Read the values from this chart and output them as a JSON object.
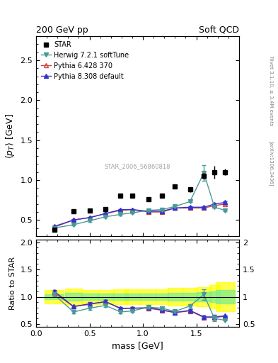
{
  "title_left": "200 GeV pp",
  "title_right": "Soft QCD",
  "right_label_top": "Rivet 3.1.10, ≥ 3.4M events",
  "right_label_bottom": "[arXiv:1306.3436]",
  "watermark": "STAR_2006_S6860818",
  "xlabel": "mass [GeV]",
  "ylabel_main": "⟨p_T⟩ [GeV]",
  "ylabel_ratio": "Ratio to STAR",
  "xlim": [
    0.0,
    1.9
  ],
  "ylim_main": [
    0.3,
    2.8
  ],
  "ylim_ratio": [
    0.45,
    2.05
  ],
  "star_x": [
    0.17,
    0.35,
    0.5,
    0.65,
    0.79,
    0.9,
    1.05,
    1.18,
    1.3,
    1.44,
    1.57,
    1.67,
    1.77
  ],
  "star_y": [
    0.38,
    0.61,
    0.62,
    0.64,
    0.8,
    0.8,
    0.76,
    0.8,
    0.92,
    0.88,
    1.05,
    1.1,
    1.1
  ],
  "star_yerr_lo": [
    0.01,
    0.02,
    0.02,
    0.02,
    0.02,
    0.02,
    0.02,
    0.02,
    0.03,
    0.03,
    0.04,
    0.08,
    0.04
  ],
  "star_yerr_hi": [
    0.01,
    0.02,
    0.02,
    0.02,
    0.02,
    0.02,
    0.02,
    0.02,
    0.03,
    0.03,
    0.04,
    0.08,
    0.04
  ],
  "herwig_x": [
    0.17,
    0.35,
    0.5,
    0.65,
    0.79,
    0.9,
    1.05,
    1.18,
    1.3,
    1.44,
    1.57,
    1.67,
    1.77
  ],
  "herwig_y": [
    0.4,
    0.44,
    0.49,
    0.54,
    0.57,
    0.59,
    0.62,
    0.63,
    0.67,
    0.73,
    1.09,
    0.66,
    0.62
  ],
  "herwig_yerr": [
    0.01,
    0.01,
    0.01,
    0.01,
    0.01,
    0.01,
    0.01,
    0.01,
    0.01,
    0.01,
    0.1,
    0.01,
    0.01
  ],
  "herwig_color": "#4a9999",
  "pythia6_x": [
    0.17,
    0.35,
    0.5,
    0.65,
    0.79,
    0.9,
    1.05,
    1.18,
    1.3,
    1.44,
    1.57,
    1.67,
    1.77
  ],
  "pythia6_y": [
    0.41,
    0.5,
    0.53,
    0.58,
    0.62,
    0.63,
    0.6,
    0.6,
    0.65,
    0.65,
    0.65,
    0.68,
    0.7
  ],
  "pythia6_yerr": [
    0.01,
    0.01,
    0.01,
    0.01,
    0.01,
    0.01,
    0.01,
    0.01,
    0.01,
    0.01,
    0.01,
    0.01,
    0.01
  ],
  "pythia6_color": "#cc4444",
  "pythia8_x": [
    0.17,
    0.35,
    0.5,
    0.65,
    0.79,
    0.9,
    1.05,
    1.18,
    1.3,
    1.44,
    1.57,
    1.67,
    1.77
  ],
  "pythia8_y": [
    0.42,
    0.5,
    0.53,
    0.58,
    0.63,
    0.63,
    0.61,
    0.61,
    0.65,
    0.66,
    0.66,
    0.7,
    0.72
  ],
  "pythia8_yerr": [
    0.01,
    0.01,
    0.01,
    0.01,
    0.01,
    0.01,
    0.01,
    0.01,
    0.01,
    0.01,
    0.01,
    0.01,
    0.01
  ],
  "pythia8_color": "#3333cc",
  "ratio_herwig_y": [
    1.04,
    0.72,
    0.79,
    0.84,
    0.72,
    0.74,
    0.81,
    0.79,
    0.73,
    0.83,
    1.04,
    0.6,
    0.57
  ],
  "ratio_herwig_yerr": [
    0.03,
    0.02,
    0.03,
    0.03,
    0.02,
    0.02,
    0.03,
    0.02,
    0.02,
    0.03,
    0.1,
    0.05,
    0.01
  ],
  "ratio_pythia6_y": [
    1.07,
    0.82,
    0.86,
    0.91,
    0.78,
    0.79,
    0.79,
    0.75,
    0.71,
    0.74,
    0.62,
    0.62,
    0.64
  ],
  "ratio_pythia6_yerr": [
    0.03,
    0.02,
    0.03,
    0.03,
    0.02,
    0.02,
    0.02,
    0.02,
    0.02,
    0.02,
    0.02,
    0.04,
    0.01
  ],
  "ratio_pythia8_y": [
    1.1,
    0.82,
    0.87,
    0.91,
    0.79,
    0.79,
    0.8,
    0.76,
    0.71,
    0.75,
    0.63,
    0.63,
    0.65
  ],
  "ratio_pythia8_yerr": [
    0.03,
    0.02,
    0.03,
    0.03,
    0.02,
    0.02,
    0.02,
    0.02,
    0.02,
    0.02,
    0.02,
    0.04,
    0.01
  ],
  "band_x": [
    0.17,
    0.35,
    0.5,
    0.65,
    0.79,
    0.9,
    1.05,
    1.18,
    1.3,
    1.44,
    1.57,
    1.67,
    1.77
  ],
  "band_width": [
    0.09,
    0.08,
    0.08,
    0.07,
    0.07,
    0.07,
    0.07,
    0.06,
    0.07,
    0.07,
    0.07,
    0.05,
    0.09
  ],
  "band_green_lo": [
    0.95,
    0.93,
    0.94,
    0.94,
    0.94,
    0.94,
    0.94,
    0.94,
    0.93,
    0.93,
    0.92,
    0.9,
    0.88
  ],
  "band_green_hi": [
    1.05,
    1.07,
    1.06,
    1.06,
    1.06,
    1.06,
    1.06,
    1.06,
    1.07,
    1.07,
    1.08,
    1.1,
    1.12
  ],
  "band_yellow_lo": [
    0.88,
    0.85,
    0.87,
    0.87,
    0.86,
    0.86,
    0.86,
    0.86,
    0.84,
    0.84,
    0.82,
    0.78,
    0.73
  ],
  "band_yellow_hi": [
    1.12,
    1.15,
    1.13,
    1.13,
    1.14,
    1.14,
    1.14,
    1.14,
    1.16,
    1.16,
    1.18,
    1.22,
    1.27
  ]
}
